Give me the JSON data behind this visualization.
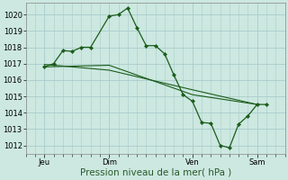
{
  "background_color": "#cce8e0",
  "grid_color": "#aacccc",
  "line_color": "#1a5c1a",
  "marker_color": "#1a5c1a",
  "figsize": [
    3.2,
    2.0
  ],
  "dpi": 100,
  "xlim": [
    0,
    28
  ],
  "ylim": [
    1011.5,
    1020.7
  ],
  "yticks": [
    1012,
    1013,
    1014,
    1015,
    1016,
    1017,
    1018,
    1019,
    1020
  ],
  "x_tick_positions": [
    2,
    9,
    18,
    25
  ],
  "x_tick_labels": [
    "Jeu",
    "Dim",
    "Ven",
    "Sam"
  ],
  "xlabel": "Pression niveau de la mer( hPa )",
  "xlabel_fontsize": 7.5,
  "tick_fontsize": 6,
  "series_main": {
    "x": [
      2,
      3,
      4,
      5,
      6,
      7,
      9,
      10,
      11,
      12,
      13,
      14,
      15,
      16,
      17,
      18,
      19,
      20,
      21,
      22,
      23,
      24,
      25,
      26
    ],
    "y": [
      1016.8,
      1017.0,
      1017.8,
      1017.75,
      1018.0,
      1018.0,
      1019.9,
      1020.0,
      1020.4,
      1019.2,
      1018.1,
      1018.1,
      1017.6,
      1016.3,
      1015.1,
      1014.7,
      1013.4,
      1013.35,
      1012.0,
      1011.85,
      1013.3,
      1013.8,
      1014.5,
      1014.5
    ]
  },
  "series_trend1": {
    "x": [
      2,
      9,
      18,
      25
    ],
    "y": [
      1016.8,
      1016.9,
      1015.1,
      1014.5
    ]
  },
  "series_trend2": {
    "x": [
      2,
      9,
      18,
      25
    ],
    "y": [
      1016.95,
      1016.6,
      1015.4,
      1014.5
    ]
  }
}
